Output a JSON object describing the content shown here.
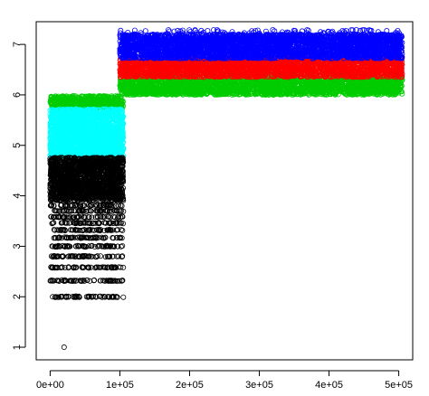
{
  "chart_data": {
    "type": "scatter",
    "title": "",
    "xlabel": "",
    "ylabel": "",
    "xlim": [
      -20000,
      520000
    ],
    "ylim": [
      0.75,
      7.45
    ],
    "x_ticks": [
      0,
      100000,
      200000,
      300000,
      400000,
      500000
    ],
    "x_tick_labels": [
      "0e+00",
      "1e+05",
      "2e+05",
      "3e+05",
      "4e+05",
      "5e+05"
    ],
    "y_ticks": [
      1,
      2,
      3,
      4,
      5,
      6,
      7
    ],
    "y_tick_labels": [
      "1",
      "2",
      "3",
      "4",
      "5",
      "6",
      "7"
    ],
    "grid": false,
    "legend": "none",
    "marker": "open-circle",
    "series": [
      {
        "color": "#00CC00",
        "regions": [
          {
            "x_range": [
              0,
              105000
            ],
            "y_range": [
              5.73,
              5.98
            ]
          },
          {
            "x_range": [
              100000,
              505000
            ],
            "y_range": [
              6.0,
              6.35
            ]
          }
        ]
      },
      {
        "color": "#00FFFF",
        "regions": [
          {
            "x_range": [
              0,
              105000
            ],
            "y_range": [
              4.78,
              5.72
            ]
          }
        ]
      },
      {
        "color": "#000000",
        "regions": [
          {
            "x_range": [
              0,
              105000
            ],
            "y_range": [
              3.9,
              4.76
            ]
          }
        ],
        "discrete_levels": [
          2.0,
          2.32,
          2.58,
          2.8,
          3.0,
          3.17,
          3.32,
          3.46,
          3.58,
          3.7,
          3.81
        ],
        "discrete_x_range": [
          0,
          105000
        ],
        "outliers": [
          {
            "x": 20000,
            "y": 1.0
          }
        ]
      },
      {
        "color": "#FF0000",
        "regions": [
          {
            "x_range": [
              100000,
              505000
            ],
            "y_range": [
              6.35,
              6.72
            ]
          }
        ]
      },
      {
        "color": "#0000FF",
        "regions": [
          {
            "x_range": [
              100000,
              505000
            ],
            "y_range": [
              6.72,
              7.2
            ]
          }
        ]
      }
    ]
  }
}
